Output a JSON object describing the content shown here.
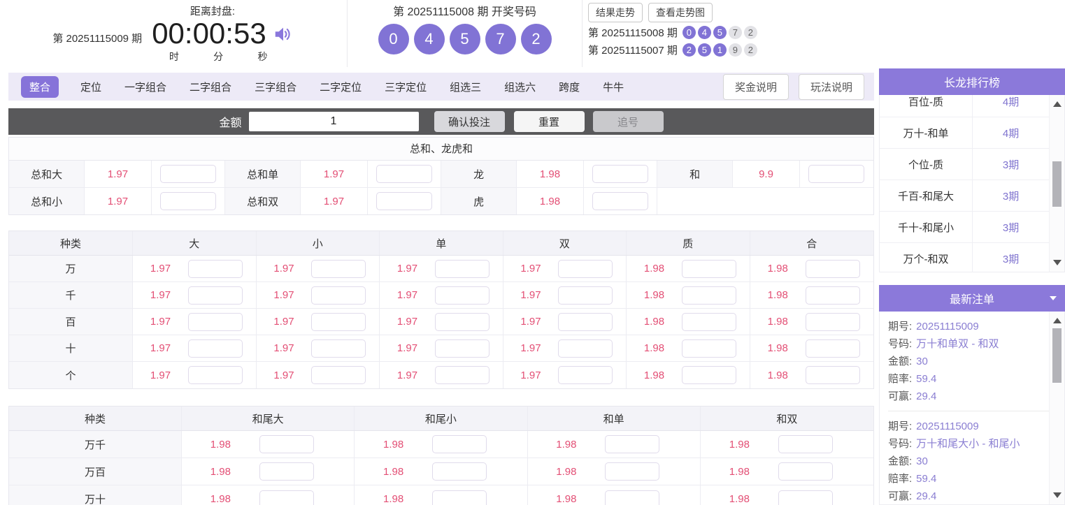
{
  "colors": {
    "accent_purple": "#8173d5",
    "panel_header_purple": "#8b79da",
    "active_tab_purple": "#8673d9",
    "odds_pink": "#e34f75",
    "toolbar_dark": "#59595b",
    "value_purple": "#8a7ed2"
  },
  "header": {
    "current_period_text": "第 20251115009 期",
    "countdown_label": "距离封盘:",
    "countdown_value": "00:00:53",
    "countdown_units": [
      "时",
      "分",
      "秒"
    ],
    "draw_title": "第 20251115008 期  开奖号码",
    "draw_numbers": [
      "0",
      "4",
      "5",
      "7",
      "2"
    ],
    "trend_buttons": [
      "结果走势",
      "查看走势图"
    ],
    "history": [
      {
        "label": "第 20251115008 期",
        "numbers": [
          "0",
          "4",
          "5",
          "7",
          "2"
        ],
        "purple_count": 3
      },
      {
        "label": "第 20251115007 期",
        "numbers": [
          "2",
          "5",
          "1",
          "9",
          "2"
        ],
        "purple_count": 3
      }
    ]
  },
  "tabs": {
    "items": [
      "整合",
      "定位",
      "一字组合",
      "二字组合",
      "三字组合",
      "二字定位",
      "三字定位",
      "组选三",
      "组选六",
      "跨度",
      "牛牛"
    ],
    "active": "整合",
    "help_buttons": [
      "奖金说明",
      "玩法说明"
    ]
  },
  "toolbar": {
    "amount_label": "金额",
    "amount_value": "1",
    "confirm_label": "确认投注",
    "reset_label": "重置",
    "chase_label": "追号"
  },
  "bet_sections": {
    "sum": {
      "title": "总和、龙虎和",
      "rows": [
        [
          {
            "label": "总和大",
            "odds": "1.97"
          },
          {
            "label": "总和单",
            "odds": "1.97"
          },
          {
            "label": "龙",
            "odds": "1.98"
          },
          {
            "label": "和",
            "odds": "9.9"
          }
        ],
        [
          {
            "label": "总和小",
            "odds": "1.97"
          },
          {
            "label": "总和双",
            "odds": "1.97"
          },
          {
            "label": "虎",
            "odds": "1.98"
          },
          null
        ]
      ]
    },
    "position": {
      "columns": [
        "种类",
        "大",
        "小",
        "单",
        "双",
        "质",
        "合"
      ],
      "rows": [
        {
          "label": "万",
          "odds": [
            "1.97",
            "1.97",
            "1.97",
            "1.97",
            "1.98",
            "1.98"
          ]
        },
        {
          "label": "千",
          "odds": [
            "1.97",
            "1.97",
            "1.97",
            "1.97",
            "1.98",
            "1.98"
          ]
        },
        {
          "label": "百",
          "odds": [
            "1.97",
            "1.97",
            "1.97",
            "1.97",
            "1.98",
            "1.98"
          ]
        },
        {
          "label": "十",
          "odds": [
            "1.97",
            "1.97",
            "1.97",
            "1.97",
            "1.98",
            "1.98"
          ]
        },
        {
          "label": "个",
          "odds": [
            "1.97",
            "1.97",
            "1.97",
            "1.97",
            "1.98",
            "1.98"
          ]
        }
      ]
    },
    "tail": {
      "columns": [
        "种类",
        "和尾大",
        "和尾小",
        "和单",
        "和双"
      ],
      "rows": [
        {
          "label": "万千",
          "odds": [
            "1.98",
            "1.98",
            "1.98",
            "1.98"
          ]
        },
        {
          "label": "万百",
          "odds": [
            "1.98",
            "1.98",
            "1.98",
            "1.98"
          ]
        },
        {
          "label": "万十",
          "odds": [
            "1.98",
            "1.98",
            "1.98",
            "1.98"
          ]
        }
      ]
    }
  },
  "sidebar": {
    "rank": {
      "title": "长龙排行榜",
      "rows": [
        {
          "name": "百位-质",
          "count": "4期"
        },
        {
          "name": "万十-和单",
          "count": "4期"
        },
        {
          "name": "个位-质",
          "count": "3期"
        },
        {
          "name": "千百-和尾大",
          "count": "3期"
        },
        {
          "name": "千十-和尾小",
          "count": "3期"
        },
        {
          "name": "万个-和双",
          "count": "3期"
        }
      ]
    },
    "orders": {
      "title": "最新注单",
      "field_labels": [
        "期号:",
        "号码:",
        "金额:",
        "赔率:",
        "可赢:"
      ],
      "entries": [
        {
          "values": [
            "20251115009",
            "万十和单双 - 和双",
            "30",
            "59.4",
            "29.4"
          ]
        },
        {
          "values": [
            "20251115009",
            "万十和尾大小 - 和尾小",
            "30",
            "59.4",
            "29.4"
          ]
        }
      ]
    }
  }
}
